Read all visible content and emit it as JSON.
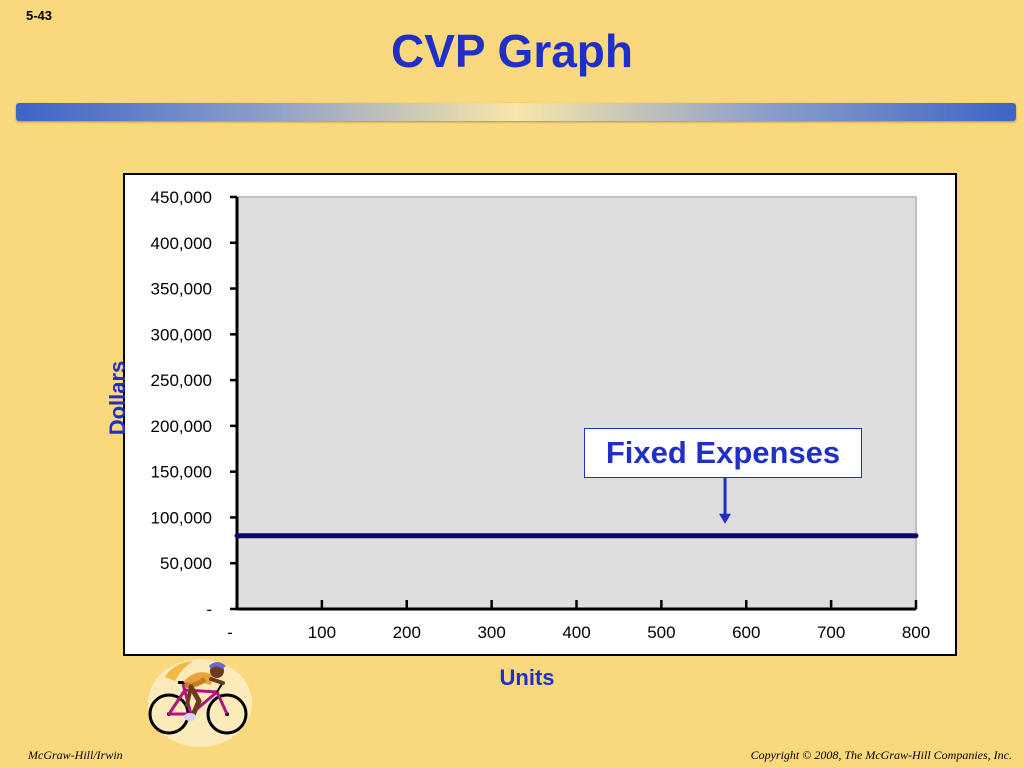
{
  "slide": {
    "number": "5-43",
    "title": "CVP Graph",
    "footer_left": "McGraw-Hill/Irwin",
    "footer_right": "Copyright © 2008, The McGraw-Hill Companies, Inc."
  },
  "colors": {
    "background": "#FAD87E",
    "title": "#1F2FC8",
    "plot_area": "#DEDEDE",
    "fixed_expense_line": "#0A0A6E"
  },
  "icons": [
    "cyclist-clipart"
  ],
  "chart_data": {
    "type": "line",
    "title": "",
    "xlabel": "Units",
    "ylabel": "Dollars",
    "x_tick_labels": [
      "-",
      "100",
      "200",
      "300",
      "400",
      "500",
      "600",
      "700",
      "800"
    ],
    "y_tick_labels": [
      "-",
      "50,000",
      "100,000",
      "150,000",
      "200,000",
      "250,000",
      "300,000",
      "350,000",
      "400,000",
      "450,000"
    ],
    "xlim": [
      0,
      800
    ],
    "ylim": [
      0,
      450000
    ],
    "grid": false,
    "series": [
      {
        "name": "Fixed Expenses",
        "x": [
          0,
          800
        ],
        "y": [
          80000,
          80000
        ]
      }
    ],
    "annotations": [
      {
        "text": "Fixed Expenses",
        "points_to_x": 575
      }
    ]
  }
}
